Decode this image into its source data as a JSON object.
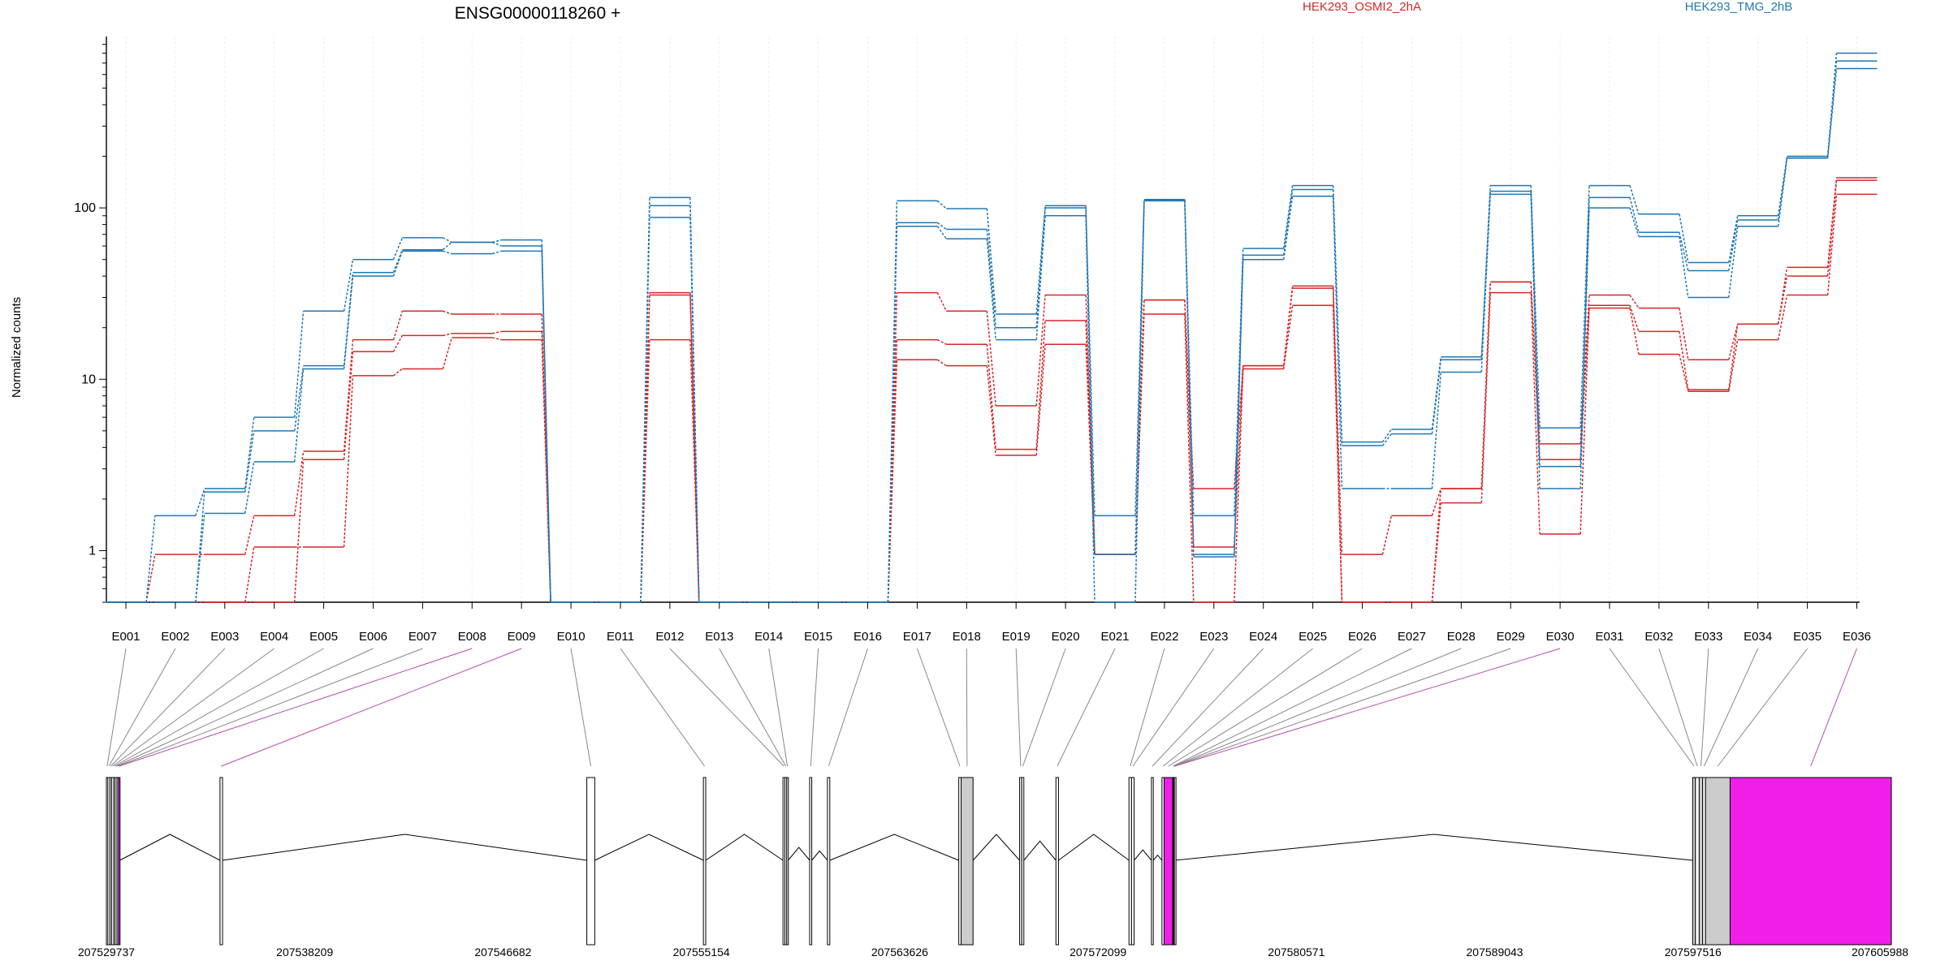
{
  "chart_data": {
    "type": "line",
    "title": "ENSG00000118260 +",
    "ylabel": "Normalized counts",
    "xlabel": "",
    "yscale": "log",
    "ylim": [
      0.5,
      1000
    ],
    "yticks": [
      1,
      10,
      100
    ],
    "grid": "vertical",
    "legend": [
      {
        "name": "HEK293_OSMI2_2hA",
        "color": "#d62728"
      },
      {
        "name": "HEK293_TMG_2hB",
        "color": "#1f77b4"
      }
    ],
    "categories": [
      "E001",
      "E002",
      "E003",
      "E004",
      "E005",
      "E006",
      "E007",
      "E008",
      "E009",
      "E010",
      "E011",
      "E012",
      "E013",
      "E014",
      "E015",
      "E016",
      "E017",
      "E018",
      "E019",
      "E020",
      "E021",
      "E022",
      "E023",
      "E024",
      "E025",
      "E026",
      "E027",
      "E028",
      "E029",
      "E030",
      "E031",
      "E032",
      "E033",
      "E034",
      "E035",
      "E036"
    ],
    "series": [
      {
        "group": "HEK293_OSMI2_2hA",
        "color": "#d62728",
        "values": [
          0.5,
          0.95,
          0.95,
          1.6,
          3.8,
          17,
          25,
          24,
          24,
          0.5,
          0.5,
          32,
          0.5,
          0.5,
          0.5,
          0.5,
          32,
          25,
          7,
          31,
          0.95,
          29,
          2.3,
          12,
          35,
          0.95,
          1.6,
          2.3,
          37,
          4.2,
          31,
          26,
          13,
          21,
          45,
          150
        ]
      },
      {
        "group": "HEK293_OSMI2_2hA",
        "color": "#d62728",
        "values": [
          0.5,
          0.5,
          0.5,
          1.05,
          1.05,
          10.5,
          11.5,
          17.5,
          17,
          0.5,
          0.5,
          17,
          0.5,
          0.5,
          0.5,
          0.5,
          13,
          12,
          3.6,
          16,
          0.95,
          24,
          0.5,
          11.5,
          27,
          0.5,
          0.5,
          1.9,
          32,
          1.25,
          26,
          14,
          8.5,
          17,
          31,
          120
        ]
      },
      {
        "group": "HEK293_OSMI2_2hA",
        "color": "#d62728",
        "values": [
          0.5,
          0.5,
          0.5,
          0.5,
          3.4,
          14.5,
          18,
          18.5,
          19,
          0.5,
          0.5,
          31,
          0.5,
          0.5,
          0.5,
          0.5,
          17,
          16,
          3.9,
          22,
          0.95,
          29,
          1.05,
          12,
          34,
          0.5,
          0.5,
          2.3,
          37,
          3.4,
          27,
          19,
          8.7,
          21,
          40,
          145
        ]
      },
      {
        "group": "HEK293_TMG_2hB",
        "color": "#1f77b4",
        "values": [
          0.5,
          1.6,
          2.3,
          6,
          25,
          50,
          67,
          63,
          65,
          0.5,
          0.5,
          115,
          0.5,
          0.5,
          0.5,
          0.5,
          110,
          99,
          24,
          103,
          1.6,
          112,
          1.6,
          58,
          135,
          4.3,
          5.1,
          13.5,
          135,
          5.2,
          135,
          92,
          48,
          90,
          200,
          800
        ]
      },
      {
        "group": "HEK293_TMG_2hB",
        "color": "#1f77b4",
        "values": [
          0.5,
          0.5,
          1.65,
          3.3,
          11.5,
          40,
          56,
          54,
          56,
          0.5,
          0.5,
          88,
          0.5,
          0.5,
          0.5,
          0.5,
          78,
          66,
          17,
          90,
          0.5,
          110,
          0.92,
          50,
          117,
          2.3,
          2.3,
          11,
          120,
          2.3,
          100,
          68,
          30,
          78,
          195,
          650
        ]
      },
      {
        "group": "HEK293_TMG_2hB",
        "color": "#1f77b4",
        "values": [
          0.5,
          0.5,
          2.2,
          5,
          12,
          42,
          57,
          63,
          60,
          0.5,
          0.5,
          103,
          0.5,
          0.5,
          0.5,
          0.5,
          82,
          75,
          20,
          100,
          0.95,
          110,
          0.95,
          53,
          128,
          4.1,
          4.8,
          13,
          125,
          3.1,
          115,
          72,
          43,
          85,
          200,
          720
        ]
      }
    ],
    "exon_connectors_highlighted": [
      "E008",
      "E009",
      "E030",
      "E036"
    ],
    "genomic_coordinates": [
      "207529737",
      "207538209",
      "207546682",
      "207555154",
      "207563626",
      "207572099",
      "207580571",
      "207589043",
      "207597516",
      "207605988"
    ],
    "gene_model": {
      "start": 207529737,
      "end": 207605988,
      "exons": [
        {
          "id": "E001",
          "start": 207529737,
          "end": 207529800,
          "fill": "#ffffff"
        },
        {
          "id": "E002",
          "start": 207529800,
          "end": 207529890,
          "fill": "#ffffff"
        },
        {
          "id": "E003",
          "start": 207529890,
          "end": 207529960,
          "fill": "#ffffff"
        },
        {
          "id": "E004",
          "start": 207529960,
          "end": 207530050,
          "fill": "#ffffff"
        },
        {
          "id": "E005",
          "start": 207530050,
          "end": 207530110,
          "fill": "#ffffff"
        },
        {
          "id": "E006",
          "start": 207530110,
          "end": 207530190,
          "fill": "#ffffff"
        },
        {
          "id": "E007",
          "start": 207530190,
          "end": 207530250,
          "fill": "#ffffff"
        },
        {
          "id": "E008",
          "start": 207530250,
          "end": 207530310,
          "fill": "#f01ee8"
        },
        {
          "id": "E009",
          "start": 207534590,
          "end": 207534700,
          "fill": "#ffffff"
        },
        {
          "id": "E010",
          "start": 207550260,
          "end": 207550600,
          "fill": "#ffffff"
        },
        {
          "id": "E011",
          "start": 207555240,
          "end": 207555340,
          "fill": "#ffffff"
        },
        {
          "id": "E012",
          "start": 207558640,
          "end": 207558720,
          "fill": "#ffffff"
        },
        {
          "id": "E013",
          "start": 207558720,
          "end": 207558800,
          "fill": "#ffffff"
        },
        {
          "id": "E014",
          "start": 207558800,
          "end": 207558860,
          "fill": "#ffffff"
        },
        {
          "id": "E015",
          "start": 207559780,
          "end": 207559870,
          "fill": "#ffffff"
        },
        {
          "id": "E016",
          "start": 207560540,
          "end": 207560640,
          "fill": "#ffffff"
        },
        {
          "id": "E017",
          "start": 207566150,
          "end": 207566250,
          "fill": "#ffffff"
        },
        {
          "id": "E018",
          "start": 207566250,
          "end": 207566760,
          "fill": "#cccccc"
        },
        {
          "id": "E019",
          "start": 207568750,
          "end": 207568840,
          "fill": "#ffffff"
        },
        {
          "id": "E020",
          "start": 207568840,
          "end": 207568930,
          "fill": "#ffffff"
        },
        {
          "id": "E021",
          "start": 207570300,
          "end": 207570410,
          "fill": "#ffffff"
        },
        {
          "id": "E022",
          "start": 207573420,
          "end": 207573530,
          "fill": "#ffffff"
        },
        {
          "id": "E023",
          "start": 207573530,
          "end": 207573640,
          "fill": "#ffffff"
        },
        {
          "id": "E024",
          "start": 207574380,
          "end": 207574460,
          "fill": "#ffffff"
        },
        {
          "id": "E025",
          "start": 207574830,
          "end": 207574920,
          "fill": "#ffffff"
        },
        {
          "id": "E026",
          "start": 207574920,
          "end": 207575290,
          "fill": "#f01ee8"
        },
        {
          "id": "E027",
          "start": 207575290,
          "end": 207575320,
          "fill": "#ffffff"
        },
        {
          "id": "E028",
          "start": 207575320,
          "end": 207575340,
          "fill": "#ffffff"
        },
        {
          "id": "E029",
          "start": 207575340,
          "end": 207575360,
          "fill": "#ffffff"
        },
        {
          "id": "E030",
          "start": 207575360,
          "end": 207575380,
          "fill": "#ffffff"
        },
        {
          "id": "E031",
          "start": 207597500,
          "end": 207597620,
          "fill": "#cccccc"
        },
        {
          "id": "E032",
          "start": 207597620,
          "end": 207597780,
          "fill": "#ffffff"
        },
        {
          "id": "E033",
          "start": 207597780,
          "end": 207597930,
          "fill": "#cccccc"
        },
        {
          "id": "E034",
          "start": 207597930,
          "end": 207598050,
          "fill": "#ffffff"
        },
        {
          "id": "E035",
          "start": 207598050,
          "end": 207599100,
          "fill": "#cccccc"
        },
        {
          "id": "E036",
          "start": 207599100,
          "end": 207605988,
          "fill": "#f01ee8"
        }
      ]
    }
  }
}
